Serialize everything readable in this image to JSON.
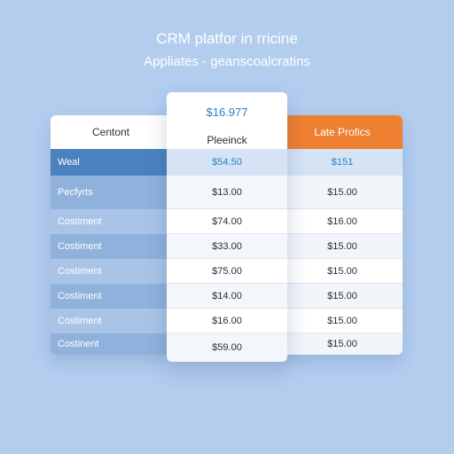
{
  "header": {
    "title": "CRM platfor in rricine",
    "subtitle": "Appliates - geanscoalcratins"
  },
  "table": {
    "left": {
      "header": "Centont",
      "rows": [
        "Weal",
        "Pecfyrts",
        "Costiment",
        "Costiment",
        "Costiment",
        "Costiment",
        "Costiment",
        "Costinent"
      ]
    },
    "middle": {
      "price": "$16.977",
      "plan": "Pleeinck",
      "rows": [
        "$54.50",
        "$13.00",
        "$74.00",
        "$33.00",
        "$75.00",
        "$14.00",
        "$16.00",
        "$59.00"
      ]
    },
    "right": {
      "header": "Late Profics",
      "rows": [
        "$151",
        "$15.00",
        "$16.00",
        "$15.00",
        "$15.00",
        "$15.00",
        "$15.00",
        "$15.00"
      ]
    }
  },
  "colors": {
    "background": "#b3cdef",
    "accent_orange": "#ef7f31",
    "accent_blue": "#2d7fc1",
    "left_highlight": "#4a82bf"
  }
}
